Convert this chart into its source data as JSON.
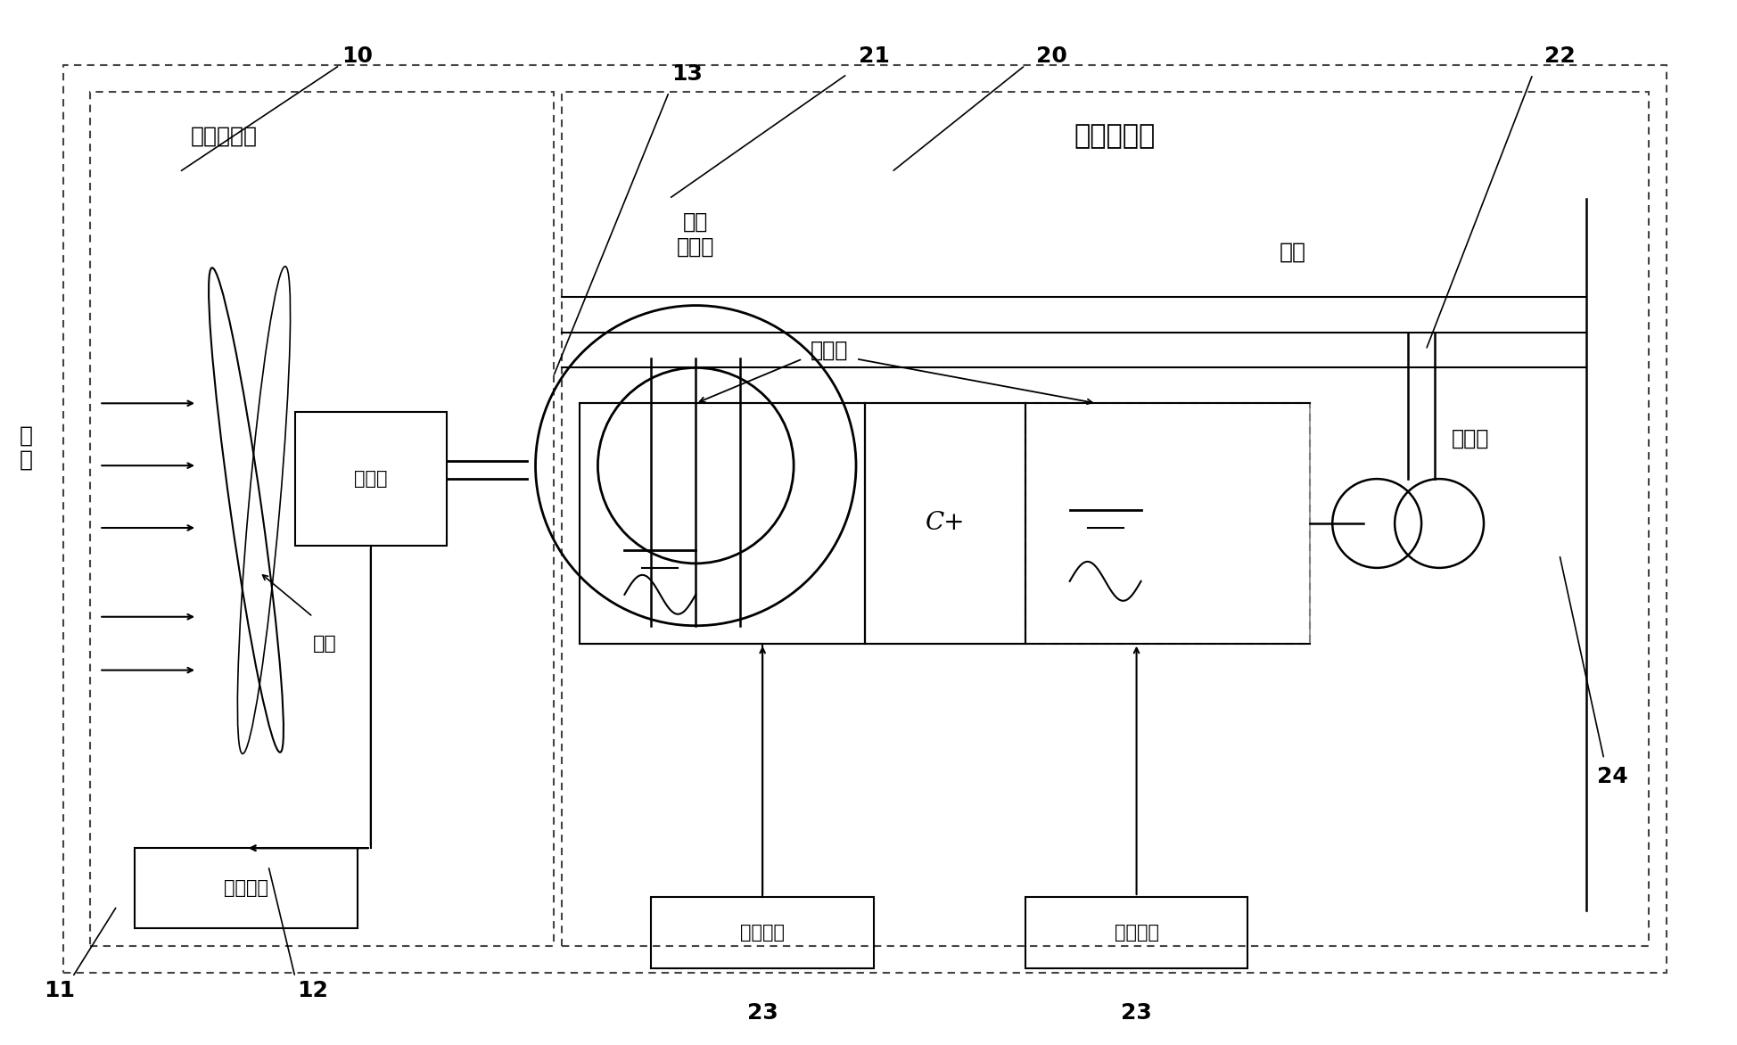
{
  "bg_color": "#ffffff",
  "line_color": "#000000",
  "dashed_color": "#555555",
  "fig_width": 19.48,
  "fig_height": 11.72,
  "labels": {
    "wind_energy": "风\n能",
    "mech_subsystem": "机械子系统",
    "elec_subsystem": "电气子系统",
    "async_gen": "异步\n发电机",
    "gearbox": "齿轮箱",
    "blade": "叶片",
    "pitch_ctrl": "变桨控制",
    "grid": "电网",
    "inverter": "变频器",
    "transformer": "变压器",
    "capacitor": "C",
    "freq_ctrl": "频率控制",
    "volt_ctrl": "电压控制",
    "ref_10": "10",
    "ref_11": "11",
    "ref_12": "12",
    "ref_13": "13",
    "ref_20": "20",
    "ref_21": "21",
    "ref_22": "22",
    "ref_23a": "23",
    "ref_23b": "23",
    "ref_24": "24"
  }
}
